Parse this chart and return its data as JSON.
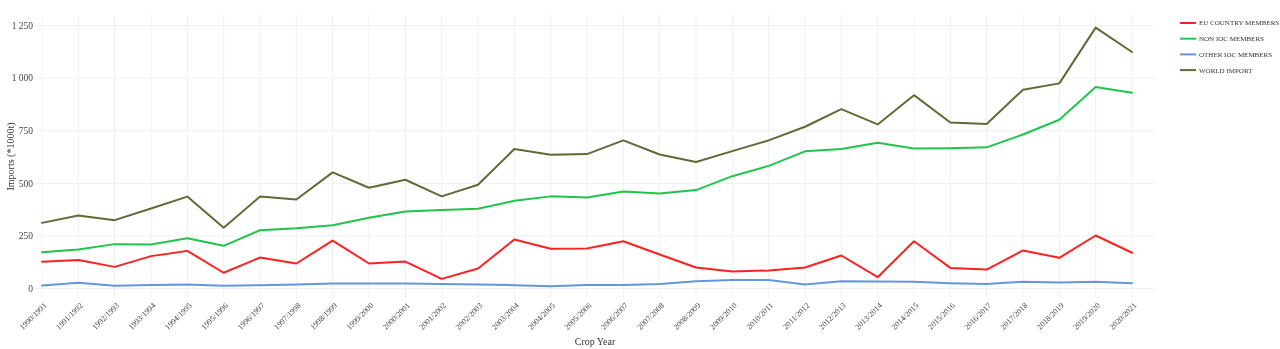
{
  "chart_data": {
    "type": "line",
    "xlabel": "Crop Year",
    "ylabel": "Imports (*1000t)",
    "categories": [
      "1990/1991",
      "1991/1992",
      "1992/1993",
      "1993/1994",
      "1994/1995",
      "1995/1996",
      "1996/1997",
      "1997/1998",
      "1998/1999",
      "1999/2000",
      "2000/2001",
      "2001/2002",
      "2002/2003",
      "2003/2004",
      "2004/2005",
      "2005/2006",
      "2006/2007",
      "2007/2008",
      "2008/2009",
      "2009/2010",
      "2010/2011",
      "2011/2012",
      "2012/2013",
      "2013/2014",
      "2014/2015",
      "2015/2016",
      "2016/2017",
      "2017/2018",
      "2018/2019",
      "2019/2020",
      "2020/2021"
    ],
    "series": [
      {
        "name": "EU COUNTRY MEMBERS",
        "color": "#ff2020",
        "values": [
          127,
          136,
          103,
          154,
          179,
          75,
          147,
          119,
          228,
          119,
          128,
          46,
          95,
          233,
          189,
          190,
          225,
          162,
          100,
          81,
          86,
          100,
          157,
          54,
          225,
          98,
          90,
          181,
          146,
          252,
          170
        ]
      },
      {
        "name": "NON IOC MEMBERS",
        "color": "#1fc44c",
        "values": [
          173,
          185,
          211,
          209,
          239,
          203,
          277,
          287,
          301,
          336,
          366,
          373,
          379,
          417,
          438,
          433,
          461,
          452,
          468,
          534,
          583,
          652,
          663,
          693,
          666,
          667,
          671,
          732,
          802,
          958,
          931
        ]
      },
      {
        "name": "OTHER IOC MEMBERS",
        "color": "#6495e0",
        "values": [
          14,
          27,
          13,
          17,
          19,
          13,
          16,
          19,
          24,
          24,
          24,
          21,
          19,
          16,
          11,
          17,
          17,
          22,
          35,
          40,
          40,
          19,
          35,
          33,
          32,
          25,
          21,
          32,
          29,
          32,
          25
        ]
      },
      {
        "name": "WORLD IMPORT",
        "color": "#5f6b37",
        "values": [
          312,
          347,
          325,
          380,
          437,
          289,
          437,
          423,
          552,
          479,
          517,
          438,
          493,
          663,
          636,
          639,
          704,
          637,
          601,
          653,
          704,
          769,
          853,
          780,
          919,
          789,
          782,
          945,
          975,
          1240,
          1124
        ]
      }
    ],
    "ylim": [
      -45,
      1300
    ],
    "yticks": [
      0,
      250,
      500,
      750,
      {
        "value": 1000,
        "label": "1 000"
      },
      {
        "value": 1250,
        "label": "1 250"
      }
    ],
    "grid": true,
    "legend": "top right"
  }
}
